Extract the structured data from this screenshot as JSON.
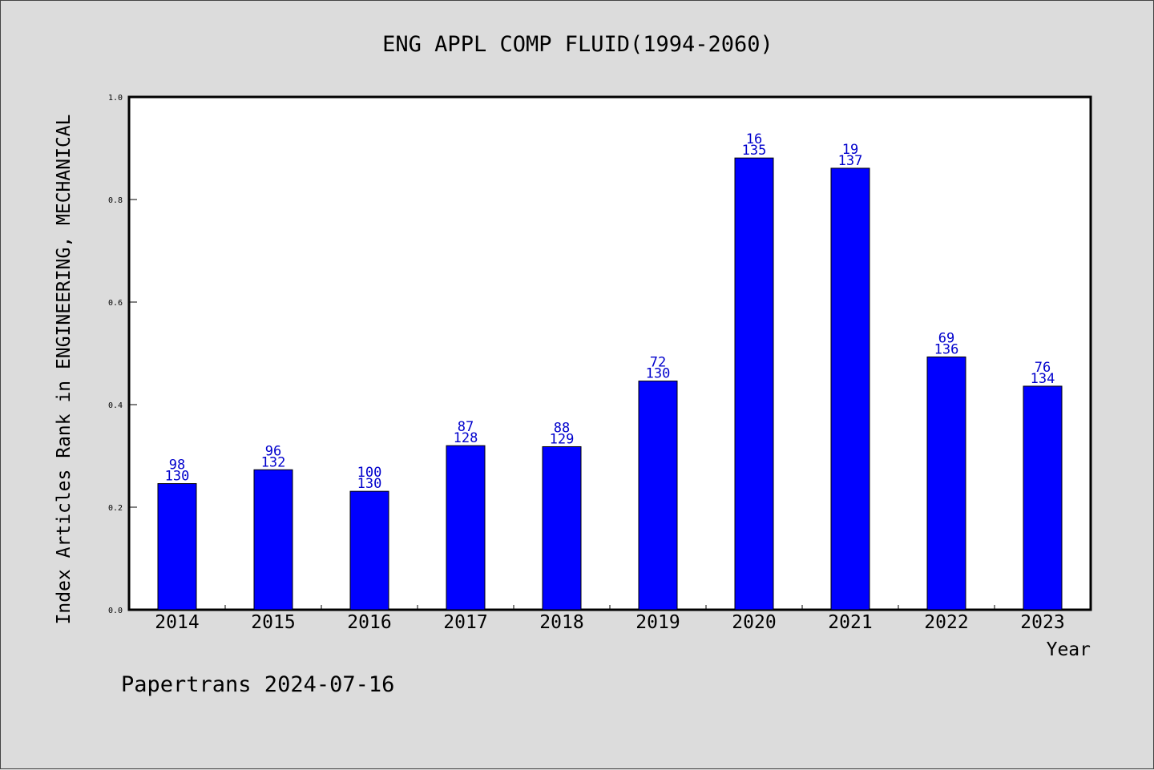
{
  "chart_data": {
    "type": "bar",
    "title": "ENG APPL COMP FLUID(1994-2060)",
    "ylabel": "Index Articles Rank in ENGINEERING, MECHANICAL",
    "xlabel": "Year",
    "categories": [
      "2014",
      "2015",
      "2016",
      "2017",
      "2018",
      "2019",
      "2020",
      "2021",
      "2022",
      "2023"
    ],
    "values": [
      0.246,
      0.273,
      0.231,
      0.32,
      0.318,
      0.446,
      0.881,
      0.861,
      0.493,
      0.436
    ],
    "labels_top": [
      "98",
      "96",
      "100",
      "87",
      "88",
      "72",
      "16",
      "19",
      "69",
      "76"
    ],
    "labels_bottom": [
      "130",
      "132",
      "130",
      "128",
      "129",
      "130",
      "135",
      "137",
      "136",
      "134"
    ],
    "ylim": [
      0,
      1.0
    ],
    "yticks": [
      "0.0",
      "0.2",
      "0.4",
      "0.6",
      "0.8",
      "1.0"
    ],
    "bar_color": "#0000ff",
    "label_color": "#0000cc",
    "grid": false
  },
  "footer": "Papertrans 2024-07-16"
}
